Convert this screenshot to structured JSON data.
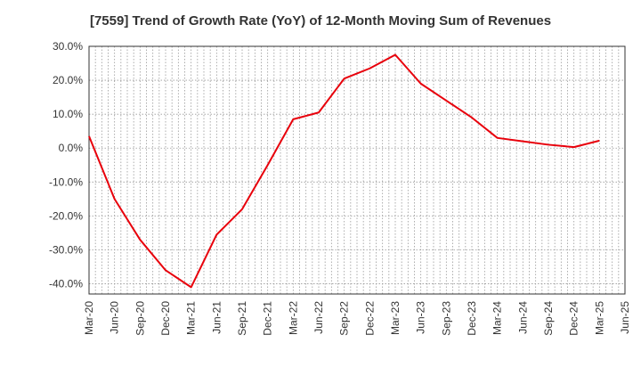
{
  "chart_data": {
    "type": "line",
    "title": "[7559]  Trend of Growth Rate (YoY) of 12-Month Moving Sum of Revenues",
    "xlabel": "",
    "ylabel": "",
    "categories": [
      "Mar-20",
      "Jun-20",
      "Sep-20",
      "Dec-20",
      "Mar-21",
      "Jun-21",
      "Sep-21",
      "Dec-21",
      "Mar-22",
      "Jun-22",
      "Sep-22",
      "Dec-22",
      "Mar-23",
      "Jun-23",
      "Sep-23",
      "Dec-23",
      "Mar-24",
      "Jun-24",
      "Sep-24",
      "Dec-24",
      "Mar-25",
      "Jun-25"
    ],
    "ytick_labels": [
      "30.0%",
      "20.0%",
      "10.0%",
      "0.0%",
      "-10.0%",
      "-20.0%",
      "-30.0%",
      "-40.0%"
    ],
    "ylim": [
      -43,
      30
    ],
    "grid": true,
    "minor_x_gridlines_per_category": 3,
    "series": [
      {
        "color": "#e8000b",
        "values": [
          3.5,
          -15.0,
          -27.0,
          -36.0,
          -41.0,
          -25.5,
          -18.0,
          -5.0,
          8.5,
          10.5,
          20.5,
          23.5,
          27.5,
          19.0,
          14.0,
          9.0,
          3.0,
          2.0,
          1.0,
          0.3,
          2.2,
          null
        ]
      }
    ]
  }
}
